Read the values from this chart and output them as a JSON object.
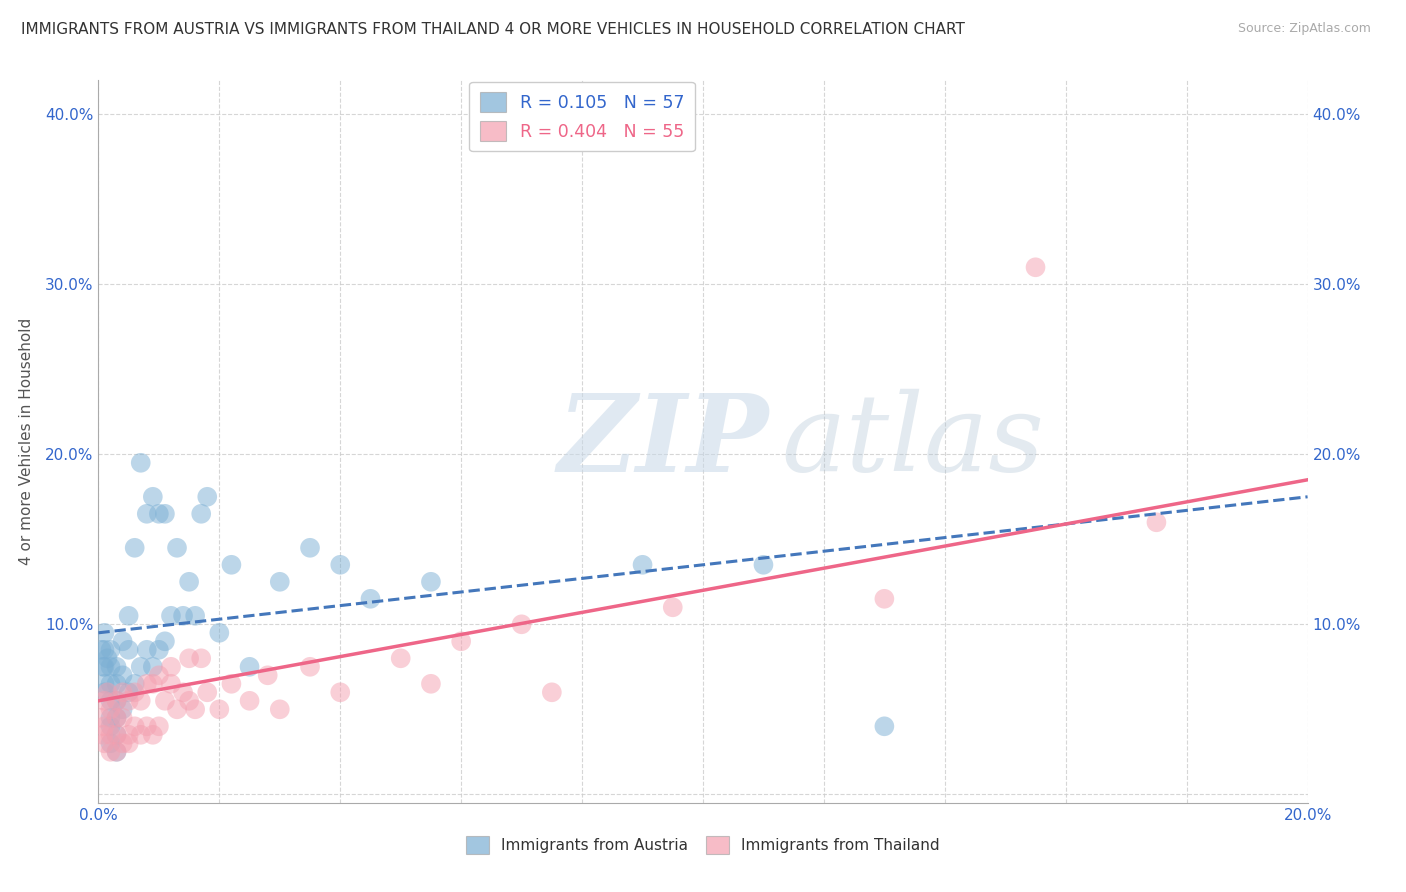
{
  "title": "IMMIGRANTS FROM AUSTRIA VS IMMIGRANTS FROM THAILAND 4 OR MORE VEHICLES IN HOUSEHOLD CORRELATION CHART",
  "source": "Source: ZipAtlas.com",
  "ylabel": "4 or more Vehicles in Household",
  "xlim": [
    0.0,
    0.2
  ],
  "ylim": [
    -0.005,
    0.42
  ],
  "xticks": [
    0.0,
    0.02,
    0.04,
    0.06,
    0.08,
    0.1,
    0.12,
    0.14,
    0.16,
    0.18,
    0.2
  ],
  "yticks": [
    0.0,
    0.1,
    0.2,
    0.3,
    0.4
  ],
  "ytick_labels": [
    "",
    "10.0%",
    "20.0%",
    "30.0%",
    "40.0%"
  ],
  "xtick_labels": [
    "0.0%",
    "",
    "",
    "",
    "",
    "",
    "",
    "",
    "",
    "",
    "20.0%"
  ],
  "austria_R": 0.105,
  "austria_N": 57,
  "thailand_R": 0.404,
  "thailand_N": 55,
  "austria_color": "#7BAFD4",
  "thailand_color": "#F4A0B0",
  "austria_line_color": "#4477BB",
  "thailand_line_color": "#EE6688",
  "austria_x": [
    0.0005,
    0.0008,
    0.001,
    0.001,
    0.001,
    0.001,
    0.001,
    0.0015,
    0.002,
    0.002,
    0.002,
    0.002,
    0.002,
    0.002,
    0.002,
    0.003,
    0.003,
    0.003,
    0.003,
    0.003,
    0.003,
    0.004,
    0.004,
    0.004,
    0.005,
    0.005,
    0.005,
    0.006,
    0.006,
    0.007,
    0.007,
    0.008,
    0.008,
    0.009,
    0.009,
    0.01,
    0.01,
    0.011,
    0.011,
    0.012,
    0.013,
    0.014,
    0.015,
    0.016,
    0.017,
    0.018,
    0.02,
    0.022,
    0.025,
    0.03,
    0.035,
    0.04,
    0.045,
    0.055,
    0.09,
    0.11,
    0.13
  ],
  "austria_y": [
    0.085,
    0.075,
    0.065,
    0.075,
    0.085,
    0.095,
    0.06,
    0.08,
    0.045,
    0.055,
    0.065,
    0.075,
    0.085,
    0.03,
    0.04,
    0.055,
    0.065,
    0.075,
    0.035,
    0.045,
    0.025,
    0.05,
    0.07,
    0.09,
    0.06,
    0.085,
    0.105,
    0.065,
    0.145,
    0.075,
    0.195,
    0.085,
    0.165,
    0.075,
    0.175,
    0.085,
    0.165,
    0.09,
    0.165,
    0.105,
    0.145,
    0.105,
    0.125,
    0.105,
    0.165,
    0.175,
    0.095,
    0.135,
    0.075,
    0.125,
    0.145,
    0.135,
    0.115,
    0.125,
    0.135,
    0.135,
    0.04
  ],
  "thailand_x": [
    0.0005,
    0.0008,
    0.001,
    0.001,
    0.001,
    0.0015,
    0.002,
    0.002,
    0.002,
    0.003,
    0.003,
    0.003,
    0.003,
    0.004,
    0.004,
    0.004,
    0.005,
    0.005,
    0.005,
    0.006,
    0.006,
    0.007,
    0.007,
    0.008,
    0.008,
    0.009,
    0.009,
    0.01,
    0.01,
    0.011,
    0.012,
    0.012,
    0.013,
    0.014,
    0.015,
    0.015,
    0.016,
    0.017,
    0.018,
    0.02,
    0.022,
    0.025,
    0.028,
    0.03,
    0.035,
    0.04,
    0.05,
    0.055,
    0.06,
    0.07,
    0.075,
    0.095,
    0.13,
    0.155,
    0.175
  ],
  "thailand_y": [
    0.045,
    0.035,
    0.055,
    0.04,
    0.03,
    0.06,
    0.035,
    0.05,
    0.025,
    0.035,
    0.045,
    0.055,
    0.025,
    0.03,
    0.045,
    0.06,
    0.035,
    0.055,
    0.03,
    0.04,
    0.06,
    0.035,
    0.055,
    0.04,
    0.065,
    0.035,
    0.065,
    0.04,
    0.07,
    0.055,
    0.065,
    0.075,
    0.05,
    0.06,
    0.055,
    0.08,
    0.05,
    0.08,
    0.06,
    0.05,
    0.065,
    0.055,
    0.07,
    0.05,
    0.075,
    0.06,
    0.08,
    0.065,
    0.09,
    0.1,
    0.06,
    0.11,
    0.115,
    0.31,
    0.16
  ]
}
